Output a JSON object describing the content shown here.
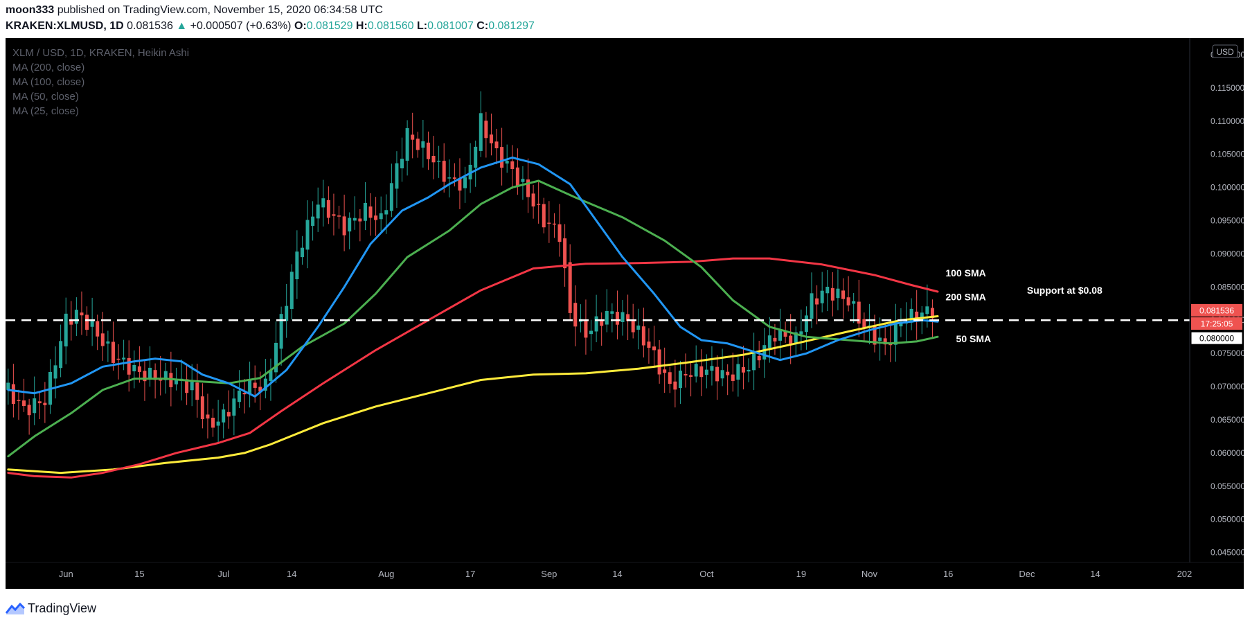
{
  "header": {
    "line1": {
      "author": "moon333",
      "text": "published on TradingView.com, November 15, 2020 06:34:58 UTC"
    },
    "line2": {
      "symbol": "KRAKEN:XLMUSD, 1D",
      "last": "0.081536",
      "arrow": "▲",
      "change": "+0.000507 (+0.63%)",
      "o_label": "O:",
      "o": "0.081529",
      "h_label": "H:",
      "h": "0.081560",
      "l_label": "L:",
      "l": "0.081007",
      "c_label": "C:",
      "c": "0.081297"
    }
  },
  "legend": {
    "title": "XLM / USD, 1D, KRAKEN, Heikin Ashi",
    "items": [
      "MA (200, close)",
      "MA (100, close)",
      "MA (50, close)",
      "MA (25, close)"
    ]
  },
  "currency_button": "USD",
  "watermark": "TradingView",
  "colors": {
    "background": "#000000",
    "up": "#26a69a",
    "down": "#ef5350",
    "ma200": "#ffeb3b",
    "ma100": "#f23645",
    "ma50": "#4caf50",
    "ma25": "#2196f3",
    "text_axis": "#b2b5be",
    "legend_text": "#5d606b",
    "price_tag": "#ef5350"
  },
  "chart_data": {
    "type": "candlestick",
    "style": "Heikin Ashi",
    "ylim": [
      0.0435,
      0.1225
    ],
    "y_ticks": [
      "0.045000",
      "0.050000",
      "0.055000",
      "0.060000",
      "0.065000",
      "0.070000",
      "0.075000",
      "0.080000",
      "0.085000",
      "0.090000",
      "0.095000",
      "0.100000",
      "0.105000",
      "0.110000",
      "0.115000",
      "0.120000"
    ],
    "x_ticks": [
      {
        "label": "Jun",
        "day": 31
      },
      {
        "label": "15",
        "day": 45
      },
      {
        "label": "Jul",
        "day": 61
      },
      {
        "label": "14",
        "day": 74
      },
      {
        "label": "Aug",
        "day": 92
      },
      {
        "label": "17",
        "day": 108
      },
      {
        "label": "Sep",
        "day": 123
      },
      {
        "label": "14",
        "day": 136
      },
      {
        "label": "Oct",
        "day": 153
      },
      {
        "label": "19",
        "day": 171
      },
      {
        "label": "Nov",
        "day": 184
      },
      {
        "label": "16",
        "day": 199
      },
      {
        "label": "Dec",
        "day": 214
      },
      {
        "label": "14",
        "day": 227
      },
      {
        "label": "202",
        "day": 244
      }
    ],
    "x_range_days": [
      19.5,
      245
    ],
    "ma200": [
      [
        20,
        0.0575
      ],
      [
        30,
        0.057
      ],
      [
        40,
        0.0575
      ],
      [
        50,
        0.0585
      ],
      [
        60,
        0.0593
      ],
      [
        65,
        0.06
      ],
      [
        70,
        0.0613
      ],
      [
        80,
        0.0645
      ],
      [
        90,
        0.067
      ],
      [
        100,
        0.069
      ],
      [
        110,
        0.071
      ],
      [
        120,
        0.0718
      ],
      [
        130,
        0.072
      ],
      [
        140,
        0.0727
      ],
      [
        150,
        0.0737
      ],
      [
        160,
        0.0748
      ],
      [
        170,
        0.0765
      ],
      [
        180,
        0.0783
      ],
      [
        190,
        0.08
      ],
      [
        197,
        0.0806
      ]
    ],
    "ma100": [
      [
        20,
        0.057
      ],
      [
        25,
        0.0565
      ],
      [
        32,
        0.0563
      ],
      [
        38,
        0.057
      ],
      [
        45,
        0.0583
      ],
      [
        52,
        0.06
      ],
      [
        60,
        0.0615
      ],
      [
        66,
        0.063
      ],
      [
        72,
        0.0663
      ],
      [
        80,
        0.0705
      ],
      [
        90,
        0.0755
      ],
      [
        100,
        0.08
      ],
      [
        110,
        0.0845
      ],
      [
        120,
        0.0878
      ],
      [
        130,
        0.0885
      ],
      [
        140,
        0.0886
      ],
      [
        150,
        0.0888
      ],
      [
        158,
        0.0893
      ],
      [
        165,
        0.0893
      ],
      [
        175,
        0.0884
      ],
      [
        185,
        0.0868
      ],
      [
        192,
        0.0853
      ],
      [
        197,
        0.0843
      ]
    ],
    "ma50": [
      [
        20,
        0.0595
      ],
      [
        25,
        0.0625
      ],
      [
        32,
        0.066
      ],
      [
        38,
        0.0695
      ],
      [
        44,
        0.0712
      ],
      [
        50,
        0.0712
      ],
      [
        56,
        0.0708
      ],
      [
        62,
        0.0705
      ],
      [
        68,
        0.0713
      ],
      [
        76,
        0.076
      ],
      [
        84,
        0.0795
      ],
      [
        90,
        0.084
      ],
      [
        96,
        0.0895
      ],
      [
        104,
        0.0935
      ],
      [
        110,
        0.0975
      ],
      [
        116,
        0.1
      ],
      [
        121,
        0.101
      ],
      [
        128,
        0.0985
      ],
      [
        137,
        0.0955
      ],
      [
        145,
        0.092
      ],
      [
        152,
        0.088
      ],
      [
        158,
        0.083
      ],
      [
        165,
        0.079
      ],
      [
        172,
        0.0775
      ],
      [
        180,
        0.077
      ],
      [
        188,
        0.0765
      ],
      [
        193,
        0.0768
      ],
      [
        197,
        0.0775
      ]
    ],
    "ma25": [
      [
        20,
        0.0695
      ],
      [
        25,
        0.069
      ],
      [
        32,
        0.0705
      ],
      [
        38,
        0.073
      ],
      [
        44,
        0.0738
      ],
      [
        48,
        0.0742
      ],
      [
        53,
        0.0738
      ],
      [
        57,
        0.0718
      ],
      [
        62,
        0.0705
      ],
      [
        67,
        0.0685
      ],
      [
        73,
        0.0725
      ],
      [
        79,
        0.079
      ],
      [
        84,
        0.085
      ],
      [
        89,
        0.0915
      ],
      [
        95,
        0.0965
      ],
      [
        100,
        0.0985
      ],
      [
        104,
        0.1005
      ],
      [
        110,
        0.103
      ],
      [
        116,
        0.1045
      ],
      [
        121,
        0.1035
      ],
      [
        127,
        0.1005
      ],
      [
        132,
        0.095
      ],
      [
        137,
        0.0895
      ],
      [
        143,
        0.084
      ],
      [
        148,
        0.079
      ],
      [
        152,
        0.077
      ],
      [
        157,
        0.0765
      ],
      [
        163,
        0.075
      ],
      [
        167,
        0.074
      ],
      [
        172,
        0.075
      ],
      [
        178,
        0.077
      ],
      [
        184,
        0.0785
      ],
      [
        189,
        0.0795
      ],
      [
        194,
        0.08
      ],
      [
        197,
        0.0798
      ]
    ],
    "support_line": 0.08,
    "annotations": [
      {
        "text": "100 SMA",
        "day": 198.5,
        "y": 0.0866
      },
      {
        "text": "200 SMA",
        "day": 198.5,
        "y": 0.083
      },
      {
        "text": "Support at $0.08",
        "day": 214,
        "y": 0.084
      },
      {
        "text": "50 SMA",
        "day": 200.5,
        "y": 0.0767
      }
    ],
    "price_labels": [
      {
        "text": "0.081536",
        "y": 0.0815,
        "type": "last"
      },
      {
        "text": "17:25:05",
        "y": 0.0795,
        "type": "countdown"
      },
      {
        "text": "0.080000",
        "y": 0.0773,
        "type": "level"
      }
    ]
  }
}
